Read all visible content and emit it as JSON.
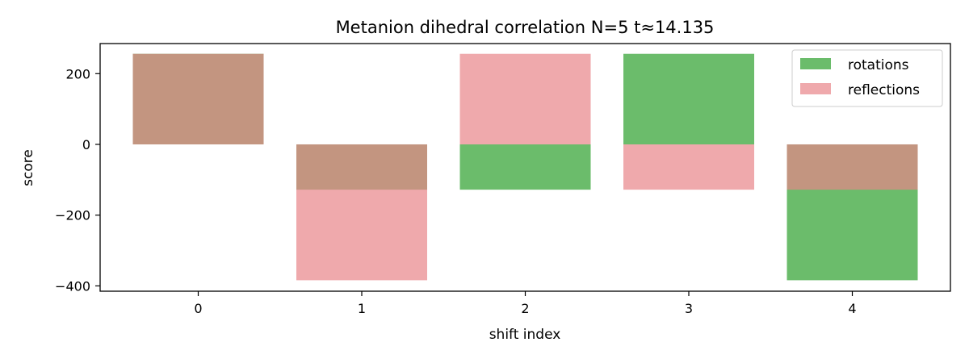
{
  "chart_data": {
    "type": "bar",
    "title": "Metanion dihedral correlation N=5 t≈14.135",
    "xlabel": "shift index",
    "ylabel": "score",
    "categories": [
      "0",
      "1",
      "2",
      "3",
      "4"
    ],
    "ylim": [
      -415,
      285
    ],
    "yticks": [
      200,
      0,
      -200,
      -400
    ],
    "ytick_labels": [
      "200",
      "0",
      "−200",
      "−400"
    ],
    "series": [
      {
        "name": "rotations",
        "values": [
          256,
          -128,
          -128,
          256,
          -384
        ],
        "color": "#2ca02c",
        "opacity": 0.7
      },
      {
        "name": "reflections",
        "values": [
          256,
          -384,
          256,
          -128,
          -128
        ],
        "color": "#e88489",
        "opacity": 0.7
      }
    ],
    "legend_position": "top-right",
    "grid": false
  }
}
